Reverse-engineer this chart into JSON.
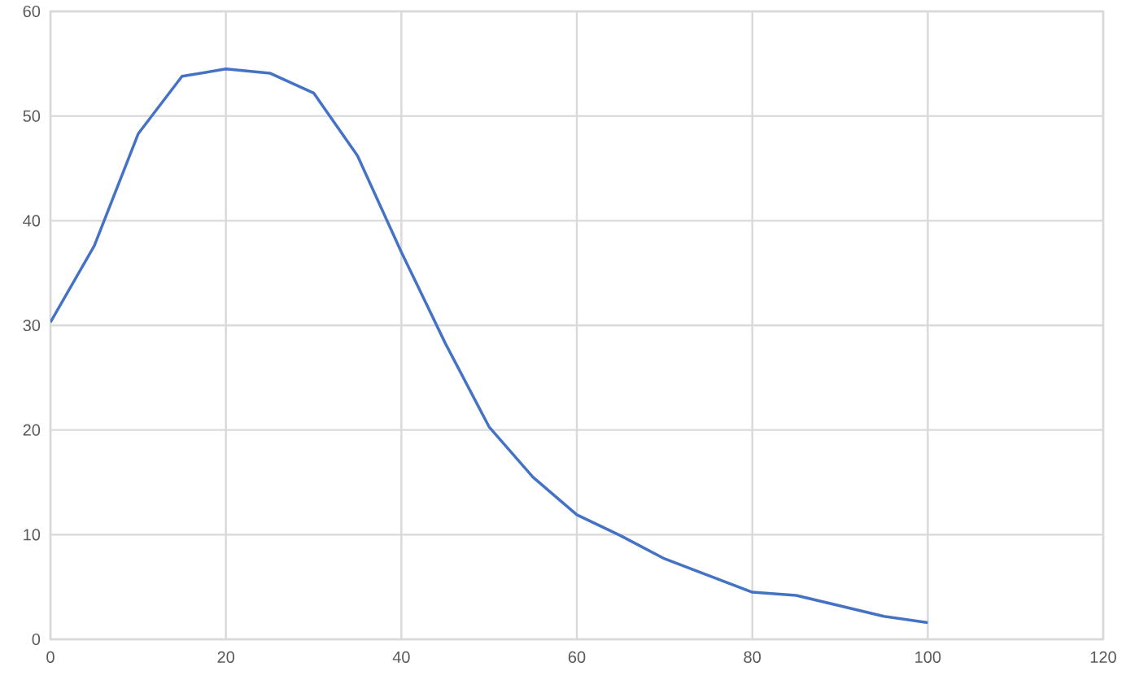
{
  "chart_data": {
    "type": "line",
    "x": [
      0,
      5,
      10,
      15,
      20,
      25,
      30,
      35,
      40,
      45,
      50,
      55,
      60,
      65,
      70,
      75,
      80,
      85,
      90,
      95,
      100
    ],
    "series": [
      {
        "color": "#4472c4",
        "values": [
          30.3,
          37.6,
          48.3,
          53.8,
          54.5,
          54.1,
          52.2,
          46.2,
          37.0,
          28.3,
          20.3,
          15.5,
          11.9,
          9.9,
          7.7,
          6.1,
          4.5,
          4.2,
          3.2,
          2.2,
          1.6
        ]
      }
    ],
    "xlim": [
      0,
      120
    ],
    "xticks": [
      0,
      20,
      40,
      60,
      80,
      100,
      120
    ],
    "ylim": [
      0,
      60
    ],
    "yticks": [
      0,
      10,
      20,
      30,
      40,
      50,
      60
    ],
    "grid": true,
    "marker": "none",
    "line_style": "solid"
  }
}
